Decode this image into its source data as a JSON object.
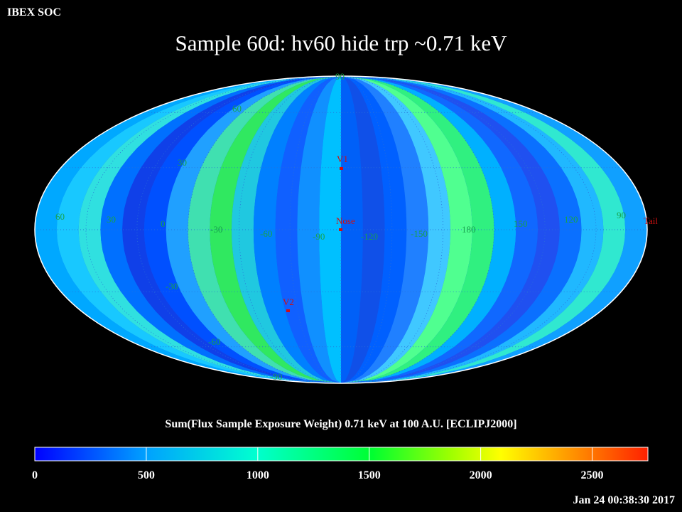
{
  "header": {
    "org": "IBEX SOC",
    "title": "Sample 60d: hv60 hide trp ~0.71 keV"
  },
  "map": {
    "projection": "Mollweide",
    "latitude_labels": [
      "60",
      "30",
      "0",
      "-30",
      "-60",
      "-90"
    ],
    "lat_label_values": [
      60,
      30,
      0,
      -30,
      -60,
      -90
    ],
    "longitude_labels": [
      "60",
      "30",
      "0",
      "-30",
      "-60",
      "-90",
      "-120",
      "-150",
      "180",
      "150",
      "120",
      "90"
    ],
    "top_label": "90",
    "markers": [
      {
        "name": "V1",
        "label": "V1"
      },
      {
        "name": "Nose",
        "label": "Nose"
      },
      {
        "name": "V2",
        "label": "V2"
      },
      {
        "name": "Tail",
        "label": "Tail"
      }
    ],
    "colors": {
      "label_green": "#17a24c",
      "marker_red": "#d01010",
      "grid": "#1a5ad0"
    }
  },
  "colorbar": {
    "title": "Sum(Flux Sample Exposure Weight)  0.71 keV at 100 A.U. [ECLIPJ2000]",
    "ticks": [
      "0",
      "500",
      "1000",
      "1500",
      "2000",
      "2500"
    ],
    "tick_values": [
      0,
      500,
      1000,
      1500,
      2000,
      2500
    ],
    "min": 0,
    "max": 2750,
    "colors": [
      "#0000ff",
      "#00d0ff",
      "#00ff60",
      "#ffff00",
      "#ff8000",
      "#ff2000"
    ]
  },
  "footer": {
    "timestamp": "Jan 24 00:38:30 2017"
  }
}
